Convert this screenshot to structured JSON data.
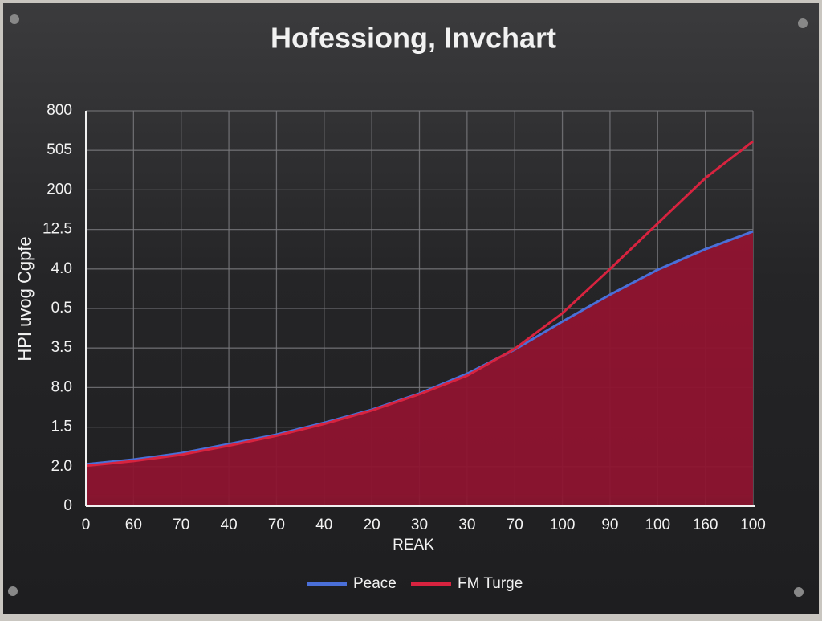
{
  "chart_data": {
    "type": "line",
    "title": "Hofessiong, Invchart",
    "x_label": "REAK",
    "y_label": "HPI uvog Cgpfe",
    "categories": [
      "0",
      "60",
      "70",
      "40",
      "70",
      "40",
      "20",
      "30",
      "30",
      "70",
      "100",
      "90",
      "100",
      "160",
      "100"
    ],
    "series": [
      {
        "name": "Peace",
        "color": "#4a6fd8",
        "area": true,
        "area_color": "#8e1430",
        "values": [
          1.06,
          1.18,
          1.34,
          1.57,
          1.81,
          2.11,
          2.44,
          2.85,
          3.35,
          3.96,
          4.67,
          5.35,
          5.98,
          6.5,
          6.95
        ]
      },
      {
        "name": "FM Turge",
        "color": "#d8233f",
        "values": [
          1.02,
          1.14,
          1.3,
          1.53,
          1.78,
          2.08,
          2.42,
          2.83,
          3.3,
          3.98,
          4.88,
          6.0,
          7.15,
          8.3,
          9.23
        ]
      }
    ],
    "ylim": [
      0,
      10
    ],
    "yticks": [
      0,
      {
        "value": 1,
        "label": "2.0"
      },
      {
        "value": 2,
        "label": "1.5"
      },
      {
        "value": 3,
        "label": "8.0"
      },
      {
        "value": 4,
        "label": "3.5"
      },
      {
        "value": 5,
        "label": "0.5"
      },
      {
        "value": 6,
        "label": "4.0"
      },
      {
        "value": 7,
        "label": "12.5"
      },
      {
        "value": 8,
        "label": "200"
      },
      {
        "value": 9,
        "label": "505"
      },
      {
        "value": 10,
        "label": "800"
      }
    ],
    "grid": true
  }
}
